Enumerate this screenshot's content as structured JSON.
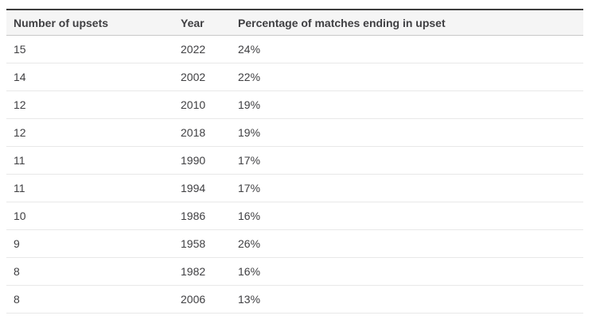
{
  "chart_data": {
    "type": "table",
    "columns": [
      "Number of upsets",
      "Year",
      "Percentage of matches ending in upset"
    ],
    "rows": [
      {
        "upsets": "15",
        "year": "2022",
        "percentage": "24%"
      },
      {
        "upsets": "14",
        "year": "2002",
        "percentage": "22%"
      },
      {
        "upsets": "12",
        "year": "2010",
        "percentage": "19%"
      },
      {
        "upsets": "12",
        "year": "2018",
        "percentage": "19%"
      },
      {
        "upsets": "11",
        "year": "1990",
        "percentage": "17%"
      },
      {
        "upsets": "11",
        "year": "1994",
        "percentage": "17%"
      },
      {
        "upsets": "10",
        "year": "1986",
        "percentage": "16%"
      },
      {
        "upsets": "9",
        "year": "1958",
        "percentage": "26%"
      },
      {
        "upsets": "8",
        "year": "1982",
        "percentage": "16%"
      },
      {
        "upsets": "8",
        "year": "2006",
        "percentage": "13%"
      }
    ]
  },
  "colors": {
    "top_border": "#3d3d3d",
    "header_bg": "#f5f5f5",
    "header_border": "#c8c8c8",
    "row_border": "#e8e8e8",
    "text": "#3f3f42"
  }
}
